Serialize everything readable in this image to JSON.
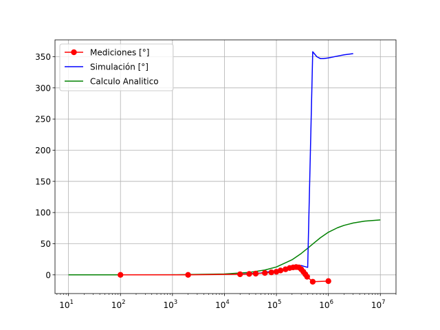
{
  "chart_data": {
    "type": "line",
    "title": "",
    "xlabel": "",
    "ylabel": "",
    "x_scale": "log",
    "xlim": [
      5.5,
      20000000
    ],
    "ylim": [
      -30,
      377
    ],
    "grid": true,
    "legend_position": "upper-left",
    "x_ticks": [
      {
        "base": "10",
        "exp": "1",
        "value": 10
      },
      {
        "base": "10",
        "exp": "2",
        "value": 100
      },
      {
        "base": "10",
        "exp": "3",
        "value": 1000
      },
      {
        "base": "10",
        "exp": "4",
        "value": 10000
      },
      {
        "base": "10",
        "exp": "5",
        "value": 100000
      },
      {
        "base": "10",
        "exp": "6",
        "value": 1000000
      },
      {
        "base": "10",
        "exp": "7",
        "value": 10000000
      }
    ],
    "y_ticks": [
      0,
      50,
      100,
      150,
      200,
      250,
      300,
      350
    ],
    "series": [
      {
        "name": "Mediciones [°]",
        "color": "#ff0000",
        "marker": "circle",
        "points": [
          [
            100,
            0
          ],
          [
            2000,
            0
          ],
          [
            20000,
            1
          ],
          [
            30000,
            1.5
          ],
          [
            40000,
            2
          ],
          [
            60000,
            3
          ],
          [
            80000,
            4
          ],
          [
            100000,
            5
          ],
          [
            120000,
            7
          ],
          [
            150000,
            9
          ],
          [
            180000,
            11
          ],
          [
            210000,
            12
          ],
          [
            240000,
            12.5
          ],
          [
            270000,
            12
          ],
          [
            300000,
            9
          ],
          [
            330000,
            5
          ],
          [
            360000,
            1
          ],
          [
            390000,
            -3
          ],
          [
            500000,
            -11
          ],
          [
            1000000,
            -10
          ]
        ]
      },
      {
        "name": "Simulación [°]",
        "color": "#0000ff",
        "marker": "none",
        "points": [
          [
            20000,
            1
          ],
          [
            50000,
            3
          ],
          [
            100000,
            7
          ],
          [
            200000,
            12
          ],
          [
            300000,
            15
          ],
          [
            400000,
            12
          ],
          [
            500000,
            358
          ],
          [
            600000,
            350
          ],
          [
            700000,
            347
          ],
          [
            800000,
            347
          ],
          [
            1000000,
            348
          ],
          [
            1500000,
            351
          ],
          [
            2000000,
            353
          ],
          [
            3000000,
            355
          ]
        ]
      },
      {
        "name": "Calculo Analitico",
        "color": "#008000",
        "marker": "none",
        "points": [
          [
            10,
            0
          ],
          [
            100,
            0.02
          ],
          [
            1000,
            0.2
          ],
          [
            10000,
            1.4
          ],
          [
            30000,
            3.9
          ],
          [
            60000,
            7.8
          ],
          [
            100000,
            12.7
          ],
          [
            200000,
            24.2
          ],
          [
            300000,
            34.3
          ],
          [
            400000,
            42.7
          ],
          [
            500000,
            49.5
          ],
          [
            700000,
            59.5
          ],
          [
            1000000,
            68.4
          ],
          [
            1500000,
            75.6
          ],
          [
            2000000,
            79.4
          ],
          [
            3000000,
            83.2
          ],
          [
            5000000,
            86.2
          ],
          [
            10000000,
            88.1
          ]
        ]
      }
    ]
  }
}
